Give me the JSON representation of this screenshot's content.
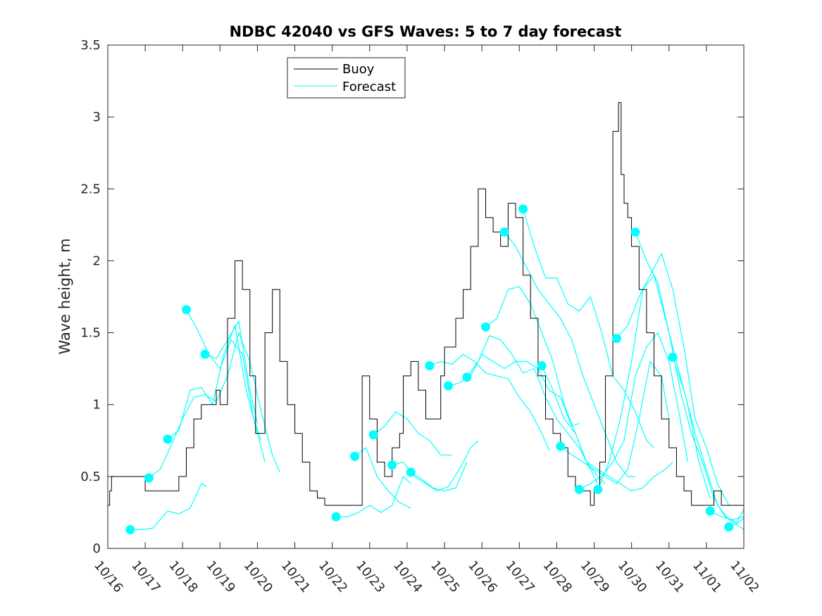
{
  "chart_data": {
    "type": "line",
    "title": "NDBC 42040 vs GFS Waves: 5 to 7 day forecast",
    "xlabel": "",
    "ylabel": "Wave height, m",
    "xlim": [
      0,
      17
    ],
    "ylim": [
      0,
      3.5
    ],
    "x_tick_labels": [
      "10/16",
      "10/17",
      "10/18",
      "10/19",
      "10/20",
      "10/21",
      "10/22",
      "10/23",
      "10/24",
      "10/25",
      "10/26",
      "10/27",
      "10/28",
      "10/29",
      "10/30",
      "10/31",
      "11/01",
      "11/02"
    ],
    "y_ticks": [
      0,
      0.5,
      1,
      1.5,
      2,
      2.5,
      3,
      3.5
    ],
    "y_tick_labels": [
      "0",
      "0.5",
      "1",
      "1.5",
      "2",
      "2.5",
      "3",
      "3.5"
    ],
    "legend": {
      "position": "top-left",
      "entries": [
        "Buoy",
        "Forecast"
      ]
    },
    "colors": {
      "buoy": "#000000",
      "forecast": "#00ffff",
      "axes": "#262626"
    },
    "buoy": {
      "name": "Buoy",
      "x": [
        0.0,
        0.05,
        0.1,
        0.5,
        1.0,
        1.5,
        1.9,
        2.1,
        2.3,
        2.5,
        2.7,
        2.9,
        3.0,
        3.2,
        3.4,
        3.6,
        3.8,
        3.95,
        4.05,
        4.2,
        4.4,
        4.6,
        4.8,
        5.0,
        5.2,
        5.4,
        5.6,
        5.8,
        6.0,
        6.2,
        6.4,
        6.6,
        6.8,
        7.0,
        7.2,
        7.4,
        7.6,
        7.8,
        7.9,
        8.1,
        8.3,
        8.5,
        8.7,
        8.9,
        9.0,
        9.1,
        9.3,
        9.5,
        9.7,
        9.9,
        10.1,
        10.3,
        10.5,
        10.7,
        10.9,
        11.1,
        11.3,
        11.5,
        11.7,
        11.9,
        12.1,
        12.3,
        12.5,
        12.7,
        12.9,
        13.0,
        13.1,
        13.15,
        13.3,
        13.5,
        13.65,
        13.72,
        13.8,
        13.9,
        14.0,
        14.2,
        14.4,
        14.6,
        14.8,
        15.0,
        15.2,
        15.4,
        15.6,
        15.8,
        16.0,
        16.2,
        16.4,
        16.6,
        17.0
      ],
      "y": [
        0.3,
        0.4,
        0.5,
        0.5,
        0.4,
        0.4,
        0.5,
        0.7,
        0.9,
        1.0,
        1.0,
        1.1,
        1.0,
        1.6,
        2.0,
        1.8,
        1.2,
        0.8,
        0.8,
        1.5,
        1.8,
        1.3,
        1.0,
        0.8,
        0.6,
        0.4,
        0.35,
        0.3,
        0.3,
        0.3,
        0.3,
        0.3,
        1.2,
        0.9,
        0.6,
        0.5,
        0.7,
        0.8,
        1.2,
        1.3,
        1.1,
        0.9,
        0.9,
        1.2,
        1.4,
        1.4,
        1.6,
        1.8,
        2.1,
        2.5,
        2.3,
        2.2,
        2.1,
        2.4,
        2.3,
        1.9,
        1.6,
        1.2,
        0.9,
        0.8,
        0.7,
        0.5,
        0.4,
        0.4,
        0.3,
        0.4,
        0.4,
        0.6,
        1.2,
        2.9,
        3.1,
        2.6,
        2.4,
        2.3,
        2.1,
        1.8,
        1.5,
        1.2,
        0.9,
        0.7,
        0.5,
        0.4,
        0.3,
        0.3,
        0.3,
        0.4,
        0.3,
        0.3,
        0.3
      ]
    },
    "forecasts": [
      {
        "name": "Forecast",
        "x": [
          0.6,
          0.9,
          1.2,
          1.6,
          1.9,
          2.2,
          2.5,
          2.65
        ],
        "y": [
          0.13,
          0.13,
          0.14,
          0.26,
          0.24,
          0.28,
          0.45,
          0.43
        ]
      },
      {
        "name": "Forecast",
        "x": [
          1.1,
          1.4,
          1.7,
          2.0,
          2.3,
          2.6,
          2.9,
          3.2,
          3.5,
          3.8,
          4.1,
          4.4,
          4.6
        ],
        "y": [
          0.49,
          0.55,
          0.72,
          0.9,
          1.05,
          1.07,
          1.02,
          1.2,
          1.5,
          1.3,
          0.95,
          0.65,
          0.53
        ]
      },
      {
        "name": "Forecast",
        "x": [
          1.6,
          1.9,
          2.2,
          2.5,
          2.8,
          3.1,
          3.4,
          3.7,
          4.0,
          4.2
        ],
        "y": [
          0.76,
          0.82,
          1.1,
          1.12,
          1.0,
          1.35,
          1.55,
          1.1,
          0.8,
          0.6
        ]
      },
      {
        "name": "Forecast",
        "x": [
          2.1,
          2.4,
          2.7,
          3.0,
          3.3,
          3.6,
          3.9,
          4.1
        ],
        "y": [
          1.66,
          1.52,
          1.35,
          1.25,
          1.45,
          1.35,
          0.9,
          0.75
        ]
      },
      {
        "name": "Forecast",
        "x": [
          2.6,
          2.9,
          3.2,
          3.5,
          3.8,
          4.0
        ],
        "y": [
          1.35,
          1.32,
          1.45,
          1.58,
          1.1,
          0.87
        ]
      },
      {
        "name": "Forecast",
        "x": [
          6.1,
          6.4,
          6.7,
          7.0,
          7.3,
          7.6,
          7.9,
          8.1
        ],
        "y": [
          0.22,
          0.22,
          0.25,
          0.3,
          0.25,
          0.3,
          0.5,
          0.45
        ]
      },
      {
        "name": "Forecast",
        "x": [
          6.6,
          6.9,
          7.2,
          7.5,
          7.8,
          8.1
        ],
        "y": [
          0.64,
          0.7,
          0.5,
          0.4,
          0.32,
          0.28
        ]
      },
      {
        "name": "Forecast",
        "x": [
          7.1,
          7.4,
          7.7,
          8.0,
          8.3,
          8.6,
          8.9,
          9.2
        ],
        "y": [
          0.79,
          0.85,
          0.95,
          0.9,
          0.8,
          0.75,
          0.65,
          0.65
        ]
      },
      {
        "name": "Forecast",
        "x": [
          7.6,
          7.9,
          8.2,
          8.5,
          8.8,
          9.1,
          9.4,
          9.7,
          9.9
        ],
        "y": [
          0.58,
          0.6,
          0.5,
          0.45,
          0.4,
          0.43,
          0.55,
          0.7,
          0.75
        ]
      },
      {
        "name": "Forecast",
        "x": [
          8.1,
          8.4,
          8.7,
          9.0,
          9.3,
          9.6
        ],
        "y": [
          0.53,
          0.48,
          0.42,
          0.4,
          0.42,
          0.6
        ]
      },
      {
        "name": "Forecast",
        "x": [
          8.6,
          8.9,
          9.2,
          9.5,
          9.8,
          10.1,
          10.4,
          10.7,
          11.0,
          11.3,
          11.6,
          11.8
        ],
        "y": [
          1.27,
          1.3,
          1.28,
          1.35,
          1.3,
          1.22,
          1.2,
          1.18,
          1.05,
          0.95,
          0.8,
          0.68
        ]
      },
      {
        "name": "Forecast",
        "x": [
          9.1,
          9.4,
          9.7,
          10.0,
          10.3,
          10.6,
          10.9,
          11.2,
          11.5,
          11.8,
          12.1,
          12.4,
          12.6
        ],
        "y": [
          1.13,
          1.15,
          1.2,
          1.35,
          1.3,
          1.25,
          1.3,
          1.3,
          1.25,
          1.1,
          1.05,
          0.85,
          0.87
        ]
      },
      {
        "name": "Forecast",
        "x": [
          9.6,
          9.9,
          10.2,
          10.5,
          10.8,
          11.1,
          11.4,
          11.7,
          12.0,
          12.3,
          12.6,
          12.9,
          13.1
        ],
        "y": [
          1.19,
          1.3,
          1.48,
          1.45,
          1.35,
          1.22,
          1.25,
          1.05,
          0.9,
          0.8,
          0.7,
          0.55,
          0.45
        ]
      },
      {
        "name": "Forecast",
        "x": [
          10.1,
          10.4,
          10.7,
          11.0,
          11.3,
          11.6,
          11.9,
          12.2,
          12.5,
          12.8,
          13.1,
          13.3
        ],
        "y": [
          1.54,
          1.6,
          1.8,
          1.82,
          1.7,
          1.5,
          1.3,
          1.0,
          0.8,
          0.6,
          0.5,
          0.45
        ]
      },
      {
        "name": "Forecast",
        "x": [
          10.6,
          10.9,
          11.2,
          11.5,
          11.8,
          12.1,
          12.4,
          12.7,
          13.0,
          13.3,
          13.6,
          13.9,
          14.1
        ],
        "y": [
          2.2,
          2.1,
          1.95,
          1.8,
          1.7,
          1.6,
          1.45,
          1.2,
          1.0,
          0.8,
          0.6,
          0.5,
          0.5
        ]
      },
      {
        "name": "Forecast",
        "x": [
          11.1,
          11.4,
          11.7,
          12.0,
          12.3,
          12.6,
          12.9,
          13.2,
          13.5,
          13.8,
          14.1,
          14.4,
          14.6
        ],
        "y": [
          2.36,
          2.1,
          1.88,
          1.88,
          1.7,
          1.65,
          1.75,
          1.5,
          1.2,
          1.1,
          0.95,
          0.75,
          0.7
        ]
      },
      {
        "name": "Forecast",
        "x": [
          11.6,
          11.9,
          12.2,
          12.5,
          12.8,
          13.1,
          13.4,
          13.7,
          14.0,
          14.3,
          14.6,
          14.9,
          15.1
        ],
        "y": [
          1.27,
          1.1,
          0.9,
          0.8,
          0.6,
          0.55,
          0.5,
          0.45,
          0.4,
          0.42,
          0.5,
          0.55,
          0.6
        ]
      },
      {
        "name": "Forecast",
        "x": [
          12.1,
          12.4,
          12.7,
          13.0,
          13.3,
          13.6,
          13.9,
          14.2,
          14.5,
          14.8,
          15.0
        ],
        "y": [
          0.71,
          0.65,
          0.6,
          0.55,
          0.5,
          0.45,
          0.55,
          0.9,
          1.3,
          1.2,
          0.9
        ]
      },
      {
        "name": "Forecast",
        "x": [
          12.6,
          12.9,
          13.2,
          13.5,
          13.8,
          14.1,
          14.4,
          14.7,
          15.0,
          15.3,
          15.5
        ],
        "y": [
          0.41,
          0.45,
          0.5,
          0.6,
          0.75,
          1.2,
          1.4,
          1.5,
          1.3,
          0.9,
          0.6
        ]
      },
      {
        "name": "Forecast",
        "x": [
          13.1,
          13.4,
          13.7,
          14.0,
          14.3,
          14.6,
          14.9,
          15.2,
          15.5,
          15.8,
          16.1
        ],
        "y": [
          0.41,
          0.6,
          0.9,
          1.3,
          1.8,
          1.9,
          1.6,
          1.3,
          1.0,
          0.6,
          0.35
        ]
      },
      {
        "name": "Forecast",
        "x": [
          13.6,
          13.9,
          14.2,
          14.5,
          14.8,
          15.1,
          15.4,
          15.7,
          16.0,
          16.3,
          16.6
        ],
        "y": [
          1.46,
          1.55,
          1.75,
          1.9,
          2.05,
          1.8,
          1.4,
          0.9,
          0.7,
          0.45,
          0.3
        ]
      },
      {
        "name": "Forecast",
        "x": [
          14.1,
          14.4,
          14.7,
          15.0,
          15.3,
          15.6,
          15.9,
          16.2,
          16.5,
          16.8,
          17.0
        ],
        "y": [
          2.2,
          2.0,
          1.85,
          1.5,
          1.1,
          0.8,
          0.6,
          0.35,
          0.22,
          0.18,
          0.27
        ]
      },
      {
        "name": "Forecast",
        "x": [
          15.1,
          15.4,
          15.7,
          16.0,
          16.3,
          16.6,
          16.9,
          17.0
        ],
        "y": [
          1.33,
          1.1,
          0.8,
          0.55,
          0.3,
          0.2,
          0.15,
          0.13
        ]
      },
      {
        "name": "Forecast",
        "x": [
          16.1,
          16.4,
          16.7,
          17.0
        ],
        "y": [
          0.26,
          0.22,
          0.2,
          0.22
        ]
      },
      {
        "name": "Forecast",
        "x": [
          16.6,
          16.8,
          17.0
        ],
        "y": [
          0.15,
          0.17,
          0.21
        ]
      }
    ]
  }
}
